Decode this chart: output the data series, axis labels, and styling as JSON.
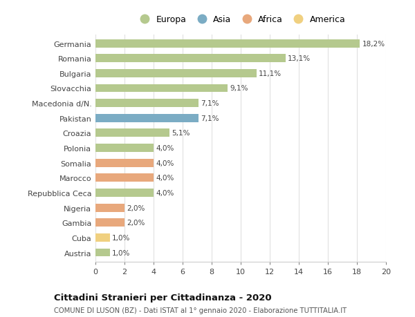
{
  "categories": [
    "Germania",
    "Romania",
    "Bulgaria",
    "Slovacchia",
    "Macedonia d/N.",
    "Pakistan",
    "Croazia",
    "Polonia",
    "Somalia",
    "Marocco",
    "Repubblica Ceca",
    "Nigeria",
    "Gambia",
    "Cuba",
    "Austria"
  ],
  "values": [
    18.2,
    13.1,
    11.1,
    9.1,
    7.1,
    7.1,
    5.1,
    4.0,
    4.0,
    4.0,
    4.0,
    2.0,
    2.0,
    1.0,
    1.0
  ],
  "labels": [
    "18,2%",
    "13,1%",
    "11,1%",
    "9,1%",
    "7,1%",
    "7,1%",
    "5,1%",
    "4,0%",
    "4,0%",
    "4,0%",
    "4,0%",
    "2,0%",
    "2,0%",
    "1,0%",
    "1,0%"
  ],
  "bar_colors": [
    "#b5c98e",
    "#b5c98e",
    "#b5c98e",
    "#b5c98e",
    "#b5c98e",
    "#7bacc4",
    "#b5c98e",
    "#b5c98e",
    "#e8a87c",
    "#e8a87c",
    "#b5c98e",
    "#e8a87c",
    "#e8a87c",
    "#f0d080",
    "#b5c98e"
  ],
  "legend_labels": [
    "Europa",
    "Asia",
    "Africa",
    "America"
  ],
  "legend_colors": [
    "#b5c98e",
    "#7bacc4",
    "#e8a87c",
    "#f0d080"
  ],
  "title": "Cittadini Stranieri per Cittadinanza - 2020",
  "subtitle": "COMUNE DI LUSON (BZ) - Dati ISTAT al 1° gennaio 2020 - Elaborazione TUTTITALIA.IT",
  "xlim": [
    0,
    20
  ],
  "xticks": [
    0,
    2,
    4,
    6,
    8,
    10,
    12,
    14,
    16,
    18,
    20
  ],
  "background_color": "#ffffff",
  "grid_color": "#e0e0e0",
  "bar_height": 0.55
}
